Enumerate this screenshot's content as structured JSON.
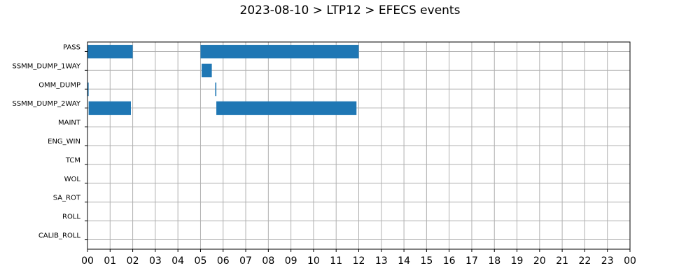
{
  "chart_data": {
    "type": "bar",
    "orientation": "horizontal-gantt",
    "title": "2023-08-10 > LTP12 > EFECS events",
    "xlabel": "",
    "ylabel": "",
    "x_unit": "hours",
    "xlim": [
      0,
      24
    ],
    "x_tick_labels": [
      "00",
      "01",
      "02",
      "03",
      "04",
      "05",
      "06",
      "07",
      "08",
      "09",
      "10",
      "11",
      "12",
      "13",
      "14",
      "15",
      "16",
      "17",
      "18",
      "19",
      "20",
      "21",
      "22",
      "23",
      "00"
    ],
    "categories": [
      "PASS",
      "SSMM_DUMP_1WAY",
      "OMM_DUMP",
      "SSMM_DUMP_2WAY",
      "MAINT",
      "ENG_WIN",
      "TCM",
      "WOL",
      "SA_ROT",
      "ROLL",
      "CALIB_ROLL"
    ],
    "grid": true,
    "bar_color": "#1f77b4",
    "grid_color": "#b0b0b0",
    "events": [
      {
        "category": "PASS",
        "start": 0.0,
        "end": 2.0
      },
      {
        "category": "PASS",
        "start": 5.0,
        "end": 12.0
      },
      {
        "category": "SSMM_DUMP_1WAY",
        "start": 5.05,
        "end": 5.5
      },
      {
        "category": "OMM_DUMP",
        "start": 0.0,
        "end": 0.05
      },
      {
        "category": "OMM_DUMP",
        "start": 5.65,
        "end": 5.7
      },
      {
        "category": "SSMM_DUMP_2WAY",
        "start": 0.05,
        "end": 1.92
      },
      {
        "category": "SSMM_DUMP_2WAY",
        "start": 5.7,
        "end": 11.9
      }
    ]
  }
}
